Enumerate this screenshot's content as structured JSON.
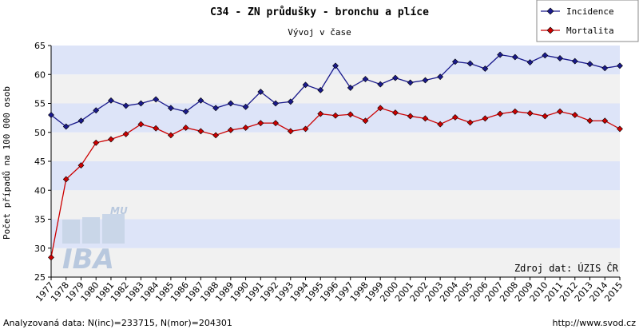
{
  "chart_data": {
    "type": "line",
    "title": "C34 - ZN průdušky - bronchu a plíce",
    "subtitle": "Vývoj v čase",
    "xlabel": "",
    "ylabel": "Počet případů na 100 000 osob",
    "ylim": [
      25,
      65
    ],
    "yticks": [
      25,
      30,
      35,
      40,
      45,
      50,
      55,
      60,
      65
    ],
    "grid": "horizontal bands",
    "legend_position": "top-right",
    "x": [
      "1977",
      "1978",
      "1979",
      "1980",
      "1981",
      "1982",
      "1983",
      "1984",
      "1985",
      "1986",
      "1987",
      "1988",
      "1989",
      "1990",
      "1991",
      "1992",
      "1993",
      "1994",
      "1995",
      "1996",
      "1997",
      "1998",
      "1999",
      "2000",
      "2001",
      "2002",
      "2003",
      "2004",
      "2005",
      "2006",
      "2007",
      "2008",
      "2009",
      "2010",
      "2011",
      "2012",
      "2013",
      "2014",
      "2015"
    ],
    "series": [
      {
        "name": "Incidence",
        "color": "#1a1a8c",
        "marker": "diamond",
        "values": [
          53.0,
          51.0,
          52.0,
          53.8,
          55.5,
          54.6,
          55.0,
          55.7,
          54.2,
          53.6,
          55.5,
          54.2,
          55.0,
          54.4,
          57.0,
          55.0,
          55.3,
          58.2,
          57.3,
          61.5,
          57.7,
          59.2,
          58.3,
          59.4,
          58.6,
          59.0,
          59.6,
          62.2,
          61.9,
          61.0,
          63.4,
          63.0,
          62.1,
          63.3,
          62.8,
          62.3,
          61.8,
          61.1,
          61.5
        ]
      },
      {
        "name": "Mortalita",
        "color": "#cc0000",
        "marker": "diamond",
        "values": [
          28.4,
          41.9,
          44.3,
          48.2,
          48.8,
          49.7,
          51.4,
          50.7,
          49.5,
          50.8,
          50.2,
          49.5,
          50.4,
          50.8,
          51.6,
          51.6,
          50.2,
          50.6,
          53.2,
          52.9,
          53.1,
          52.0,
          54.2,
          53.4,
          52.8,
          52.4,
          51.4,
          52.6,
          51.7,
          52.4,
          53.2,
          53.6,
          53.3,
          52.8,
          53.6,
          53.0,
          52.0,
          52.0,
          50.6
        ]
      }
    ],
    "annotations": [
      "Zdroj dat: ÚZIS ČR"
    ]
  },
  "watermark": {
    "text": "IBA",
    "small": "MU"
  },
  "footer": {
    "left": "Analyzovaná data: N(inc)=233715, N(mor)=204301",
    "right": "http://www.svod.cz"
  }
}
